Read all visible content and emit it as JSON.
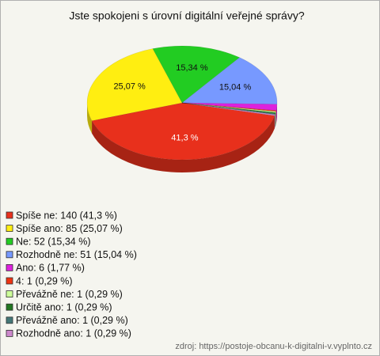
{
  "chart_data": {
    "type": "pie",
    "title": "Jste spokojeni s úrovní digitální veřejné správy?",
    "categories": [
      "Spíše ne",
      "Spíše ano",
      "Ne",
      "Rozhodně ne",
      "Ano",
      "4",
      "Převážně ne",
      "Určitě ano",
      "Převážně ano",
      "Rozhodně ano"
    ],
    "legend_labels": [
      "Spíše ne: 140 (41,3 %)",
      "Spíše ano: 85 (25,07 %)",
      "Ne: 52 (15,34 %)",
      "Rozhodně ne: 51 (15,04 %)",
      "Ano: 6 (1,77 %)",
      "4: 1 (0,29 %)",
      "Převážně ne: 1 (0,29 %)",
      "Určitě ano: 1 (0,29 %)",
      "Převážně ano: 1 (0,29 %)",
      "Rozhodně ano: 1 (0,29 %)"
    ],
    "values": [
      41.3,
      25.07,
      15.34,
      15.04,
      1.77,
      0.29,
      0.29,
      0.29,
      0.29,
      0.29
    ],
    "value_labels": [
      "41,3 %",
      "25,07 %",
      "15,34 %",
      "15,04 %",
      null,
      null,
      null,
      null,
      null,
      null
    ],
    "colors": [
      "#e8301c",
      "#ffee11",
      "#22cc22",
      "#7799ff",
      "#dd22dd",
      "#ee3311",
      "#ccff99",
      "#227722",
      "#447777",
      "#cc88cc"
    ],
    "source": "zdroj: https://postoje-obcanu-k-digitalni-v.vyplnto.cz"
  }
}
